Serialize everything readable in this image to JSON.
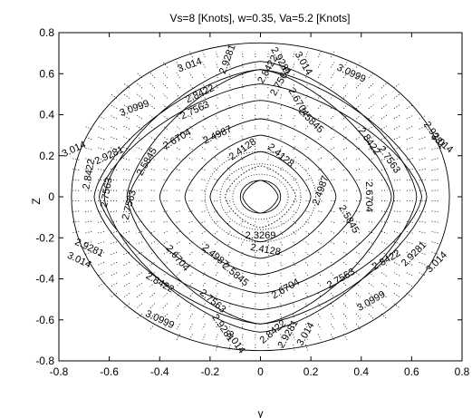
{
  "chart_data": {
    "type": "contour",
    "title": "Vs=8 [Knots], w=0.35, Va=5.2 [Knots]",
    "xlabel": "y",
    "ylabel": "Z",
    "xlim": [
      -0.8,
      0.8
    ],
    "ylim": [
      -0.8,
      0.8
    ],
    "xticks": [
      "-0.8",
      "-0.6",
      "-0.4",
      "-0.2",
      "0",
      "0.2",
      "0.4",
      "0.6",
      "0.8"
    ],
    "yticks": [
      "0.8",
      "0.6",
      "0.4",
      "0.2",
      "0",
      "-0.2",
      "-0.4",
      "-0.6",
      "-0.8"
    ],
    "grid": false,
    "domain_radius": 0.75,
    "contour_levels": [
      3.0999,
      3.014,
      2.9281,
      2.8422,
      2.7563,
      2.6704,
      2.5845,
      2.4987,
      2.4128,
      2.3269
    ],
    "contours": [
      {
        "level": 3.0999,
        "half_width": 0.53,
        "half_height": 0.62,
        "style": "solid"
      },
      {
        "level": 3.014,
        "half_width": 0.62,
        "half_height": 0.66,
        "style": "solid"
      },
      {
        "level": 2.9281,
        "half_width": 0.66,
        "half_height": 0.62,
        "style": "solid"
      },
      {
        "level": 2.8422,
        "half_width": 0.64,
        "half_height": 0.55,
        "style": "solid"
      },
      {
        "level": 2.7563,
        "half_width": 0.52,
        "half_height": 0.47,
        "style": "solid"
      },
      {
        "level": 2.6704,
        "half_width": 0.4,
        "half_height": 0.38,
        "style": "solid"
      },
      {
        "level": 2.5845,
        "half_width": 0.3,
        "half_height": 0.3,
        "style": "solid"
      },
      {
        "level": 2.4987,
        "half_width": 0.2,
        "half_height": 0.22,
        "style": "solid"
      },
      {
        "level": 2.4128,
        "half_width": 0.14,
        "half_height": 0.15,
        "style": "dotted"
      },
      {
        "level": 2.3269,
        "half_width": 0.07,
        "half_height": 0.08,
        "style": "solid"
      }
    ],
    "contour_labels": [
      {
        "text": "3.014",
        "x": -0.28,
        "y": 0.64,
        "angle": -20
      },
      {
        "text": "2.9281",
        "x": -0.13,
        "y": 0.67,
        "angle": -70
      },
      {
        "text": "2.8422",
        "x": 0.03,
        "y": 0.62,
        "angle": -60
      },
      {
        "text": "2.9281",
        "x": 0.08,
        "y": 0.66,
        "angle": 60
      },
      {
        "text": "3.014",
        "x": 0.17,
        "y": 0.65,
        "angle": 60
      },
      {
        "text": "3.0999",
        "x": 0.36,
        "y": 0.6,
        "angle": 25
      },
      {
        "text": "2.8422",
        "x": -0.24,
        "y": 0.5,
        "angle": -25
      },
      {
        "text": "2.7563",
        "x": 0.08,
        "y": 0.56,
        "angle": -60
      },
      {
        "text": "3.0999",
        "x": -0.5,
        "y": 0.43,
        "angle": -20
      },
      {
        "text": "2.7563",
        "x": -0.26,
        "y": 0.42,
        "angle": -25
      },
      {
        "text": "2.6704",
        "x": 0.15,
        "y": 0.46,
        "angle": 60
      },
      {
        "text": "2.5845",
        "x": 0.2,
        "y": 0.37,
        "angle": 45
      },
      {
        "text": "3.014",
        "x": -0.74,
        "y": 0.23,
        "angle": -25
      },
      {
        "text": "2.9281",
        "x": -0.6,
        "y": 0.2,
        "angle": -25
      },
      {
        "text": "2.6704",
        "x": -0.33,
        "y": 0.28,
        "angle": -30
      },
      {
        "text": "2.4987",
        "x": -0.17,
        "y": 0.3,
        "angle": -25
      },
      {
        "text": "2.5845",
        "x": -0.45,
        "y": 0.17,
        "angle": -60
      },
      {
        "text": "2.4128",
        "x": -0.07,
        "y": 0.23,
        "angle": -35
      },
      {
        "text": "2.4128",
        "x": 0.08,
        "y": 0.2,
        "angle": 40
      },
      {
        "text": "2.8422",
        "x": 0.43,
        "y": 0.27,
        "angle": 55
      },
      {
        "text": "2.7563",
        "x": 0.51,
        "y": 0.18,
        "angle": 55
      },
      {
        "text": "3.014",
        "x": 0.72,
        "y": 0.26,
        "angle": 40
      },
      {
        "text": "2.9281",
        "x": 0.69,
        "y": 0.3,
        "angle": 55
      },
      {
        "text": "2.8422",
        "x": -0.68,
        "y": 0.11,
        "angle": -80
      },
      {
        "text": "2.7563",
        "x": -0.61,
        "y": 0.02,
        "angle": -80
      },
      {
        "text": "2.7563",
        "x": -0.52,
        "y": -0.04,
        "angle": -75
      },
      {
        "text": "2.4987",
        "x": 0.24,
        "y": 0.03,
        "angle": -70
      },
      {
        "text": "2.6704",
        "x": 0.43,
        "y": 0.0,
        "angle": 90
      },
      {
        "text": "2.5845",
        "x": 0.35,
        "y": -0.11,
        "angle": 60
      },
      {
        "text": "2.3269",
        "x": 0.0,
        "y": -0.19,
        "angle": 0
      },
      {
        "text": "2.4128",
        "x": 0.02,
        "y": -0.26,
        "angle": 10
      },
      {
        "text": "2.4987",
        "x": -0.18,
        "y": -0.29,
        "angle": 40
      },
      {
        "text": "2.9281",
        "x": -0.68,
        "y": -0.25,
        "angle": 25
      },
      {
        "text": "3.014",
        "x": -0.72,
        "y": -0.31,
        "angle": 25
      },
      {
        "text": "2.6704",
        "x": -0.33,
        "y": -0.3,
        "angle": 50
      },
      {
        "text": "2.5845",
        "x": -0.1,
        "y": -0.38,
        "angle": 40
      },
      {
        "text": "2.8422",
        "x": -0.4,
        "y": -0.42,
        "angle": 30
      },
      {
        "text": "2.7563",
        "x": -0.19,
        "y": -0.51,
        "angle": 40
      },
      {
        "text": "2.6704",
        "x": 0.1,
        "y": -0.45,
        "angle": -30
      },
      {
        "text": "2.7563",
        "x": 0.32,
        "y": -0.4,
        "angle": -30
      },
      {
        "text": "2.8422",
        "x": 0.5,
        "y": -0.31,
        "angle": -30
      },
      {
        "text": "2.9281",
        "x": 0.61,
        "y": -0.28,
        "angle": -45
      },
      {
        "text": "3.014",
        "x": 0.7,
        "y": -0.32,
        "angle": -45
      },
      {
        "text": "3.0999",
        "x": -0.4,
        "y": -0.6,
        "angle": 25
      },
      {
        "text": "2.9281",
        "x": -0.15,
        "y": -0.64,
        "angle": 55
      },
      {
        "text": "3.014",
        "x": -0.1,
        "y": -0.71,
        "angle": 55
      },
      {
        "text": "2.8422",
        "x": 0.05,
        "y": -0.66,
        "angle": -40
      },
      {
        "text": "2.9281",
        "x": 0.11,
        "y": -0.67,
        "angle": -60
      },
      {
        "text": "3.014",
        "x": 0.18,
        "y": -0.67,
        "angle": -60
      },
      {
        "text": "3.0999",
        "x": 0.44,
        "y": -0.51,
        "angle": -30
      }
    ]
  }
}
